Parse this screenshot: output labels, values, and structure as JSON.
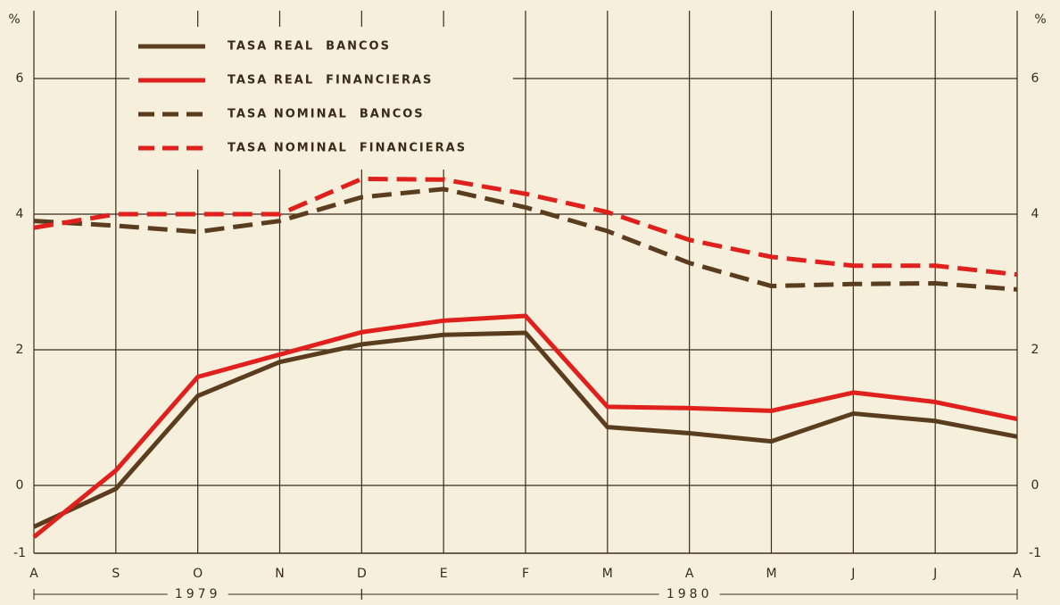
{
  "chart_data": {
    "type": "line",
    "y_unit": "%",
    "categories": [
      "A",
      "S",
      "O",
      "N",
      "D",
      "E",
      "F",
      "M",
      "A",
      "M",
      "J",
      "J",
      "A"
    ],
    "category_groups": [
      {
        "label": "1979",
        "span": [
          0,
          4
        ]
      },
      {
        "label": "1980",
        "span": [
          4,
          12
        ]
      }
    ],
    "series": [
      {
        "name": "TASA REAL  BANCOS",
        "color": "#5a3d1e",
        "dash": false,
        "values": [
          -0.61,
          -0.05,
          1.32,
          1.82,
          2.08,
          2.22,
          2.25,
          0.86,
          0.77,
          0.65,
          1.06,
          0.95,
          0.72
        ]
      },
      {
        "name": "TASA REAL  FINANCIERAS",
        "color": "#e0201c",
        "dash": false,
        "values": [
          -0.76,
          0.22,
          1.6,
          1.93,
          2.26,
          2.43,
          2.5,
          1.16,
          1.14,
          1.1,
          1.37,
          1.23,
          0.98
        ]
      },
      {
        "name": "TASA NOMINAL  BANCOS",
        "color": "#5a3d1e",
        "dash": true,
        "values": [
          3.9,
          3.83,
          3.74,
          3.9,
          4.25,
          4.37,
          4.1,
          3.75,
          3.28,
          2.94,
          2.97,
          2.98,
          2.89
        ]
      },
      {
        "name": "TASA NOMINAL  FINANCIERAS",
        "color": "#e0201c",
        "dash": true,
        "values": [
          3.8,
          4.0,
          4.0,
          4.0,
          4.52,
          4.51,
          4.3,
          4.03,
          3.62,
          3.37,
          3.24,
          3.24,
          3.11
        ]
      }
    ],
    "ylim": [
      -1,
      7
    ],
    "yticks": [
      -1,
      0,
      2,
      4,
      6
    ],
    "grid": true,
    "legend": "upper-left"
  }
}
